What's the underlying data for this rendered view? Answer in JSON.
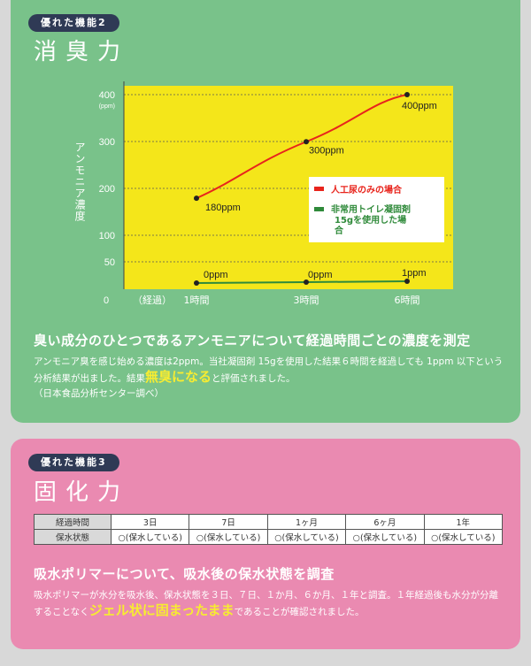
{
  "section2": {
    "badge": "優れた機能2",
    "title": "消臭力",
    "lead": "臭い成分のひとつであるアンモニアについて経過時間ごとの濃度を測定",
    "body_1": "アンモニア臭を感じ始める濃度は2ppm。当社凝固剤 15gを使用した結果６時間を経過しても 1ppm 以下という分析結果が出ました。結果",
    "body_em": "無臭になる",
    "body_2": "と評価されました。",
    "body_source": "（日本食品分析センター調べ）"
  },
  "chart_data": {
    "type": "line",
    "ylabel": "アンモニア濃度",
    "y_unit": "(ppm)",
    "y_ticks": [
      "400",
      "300",
      "200",
      "100",
      "50",
      "0"
    ],
    "x_ticks": [
      "（経過）",
      "1時間",
      "3時間",
      "6時間"
    ],
    "x": [
      "1時間",
      "3時間",
      "6時間"
    ],
    "series": [
      {
        "name": "人工尿のみの場合",
        "values": [
          180,
          300,
          400
        ],
        "labels": [
          "180ppm",
          "300ppm",
          "400ppm"
        ],
        "color": "#e8241c"
      },
      {
        "name": "非常用トイレ凝固剤15gを使用した場合",
        "values": [
          0,
          0,
          1
        ],
        "labels": [
          "0ppm",
          "0ppm",
          "1ppm"
        ],
        "color": "#2f8a3a"
      }
    ],
    "legend_position": "right",
    "plot_bg": "#f4e61a"
  },
  "section3": {
    "badge": "優れた機能3",
    "title": "固化力",
    "table": {
      "headers": [
        "経過時間",
        "3日",
        "7日",
        "1ヶ月",
        "6ヶ月",
        "1年"
      ],
      "row_label": "保水状態",
      "row": [
        "○(保水している)",
        "○(保水している)",
        "○(保水している)",
        "○(保水している)",
        "○(保水している)"
      ]
    },
    "lead": "吸水ポリマーについて、吸水後の保水状態を調査",
    "body_1": "吸水ポリマーが水分を吸水後、保水状態を３日、７日、１か月、６か月、１年と調査。１年経過後も水分が分離することなく",
    "body_em": "ジェル状に固まったまま",
    "body_2": "であることが確認されました。"
  }
}
